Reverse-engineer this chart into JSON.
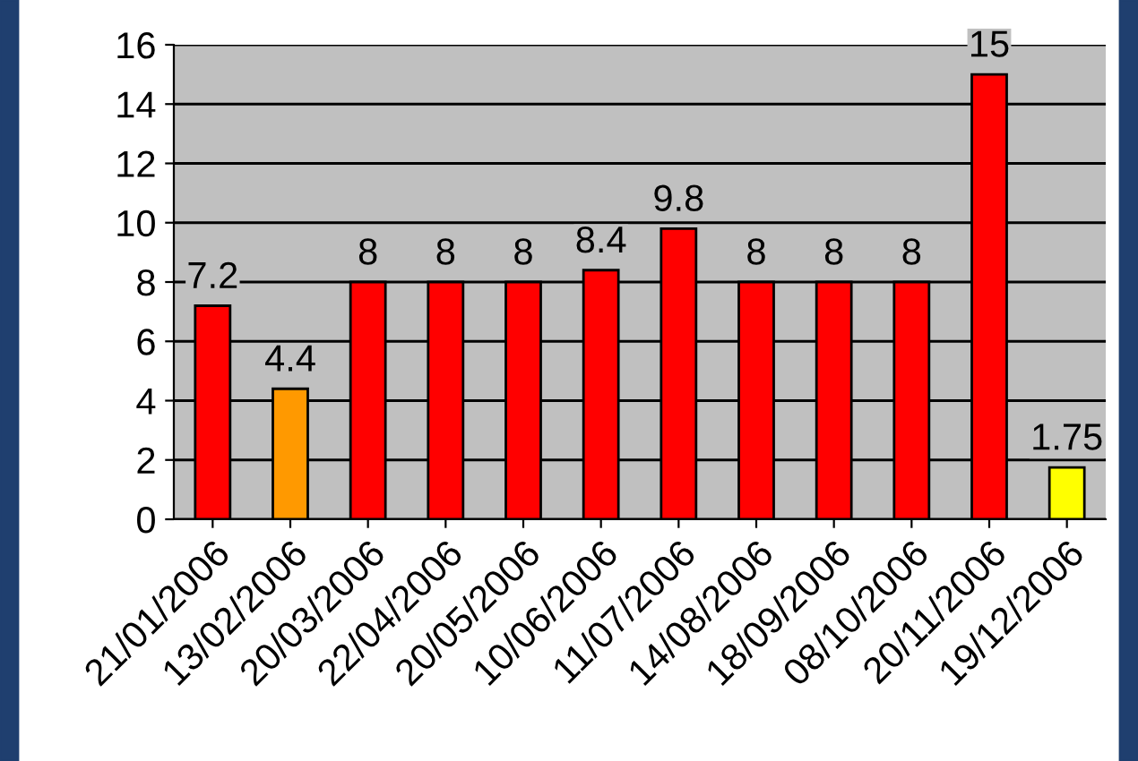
{
  "chart_data": {
    "type": "bar",
    "categories": [
      "21/01/2006",
      "13/02/2006",
      "20/03/2006",
      "22/04/2006",
      "20/05/2006",
      "10/06/2006",
      "11/07/2006",
      "14/08/2006",
      "18/09/2006",
      "08/10/2006",
      "20/11/2006",
      "19/12/2006"
    ],
    "values": [
      7.2,
      4.4,
      8,
      8,
      8,
      8.4,
      9.8,
      8,
      8,
      8,
      15,
      1.75
    ],
    "colors": [
      "#ff0000",
      "#ff9900",
      "#ff0000",
      "#ff0000",
      "#ff0000",
      "#ff0000",
      "#ff0000",
      "#ff0000",
      "#ff0000",
      "#ff0000",
      "#ff0000",
      "#ffff00"
    ],
    "ylim": [
      0,
      16
    ],
    "yticks": [
      0,
      2,
      4,
      6,
      8,
      10,
      12,
      14,
      16
    ],
    "grid": "y",
    "data_labels": true
  }
}
